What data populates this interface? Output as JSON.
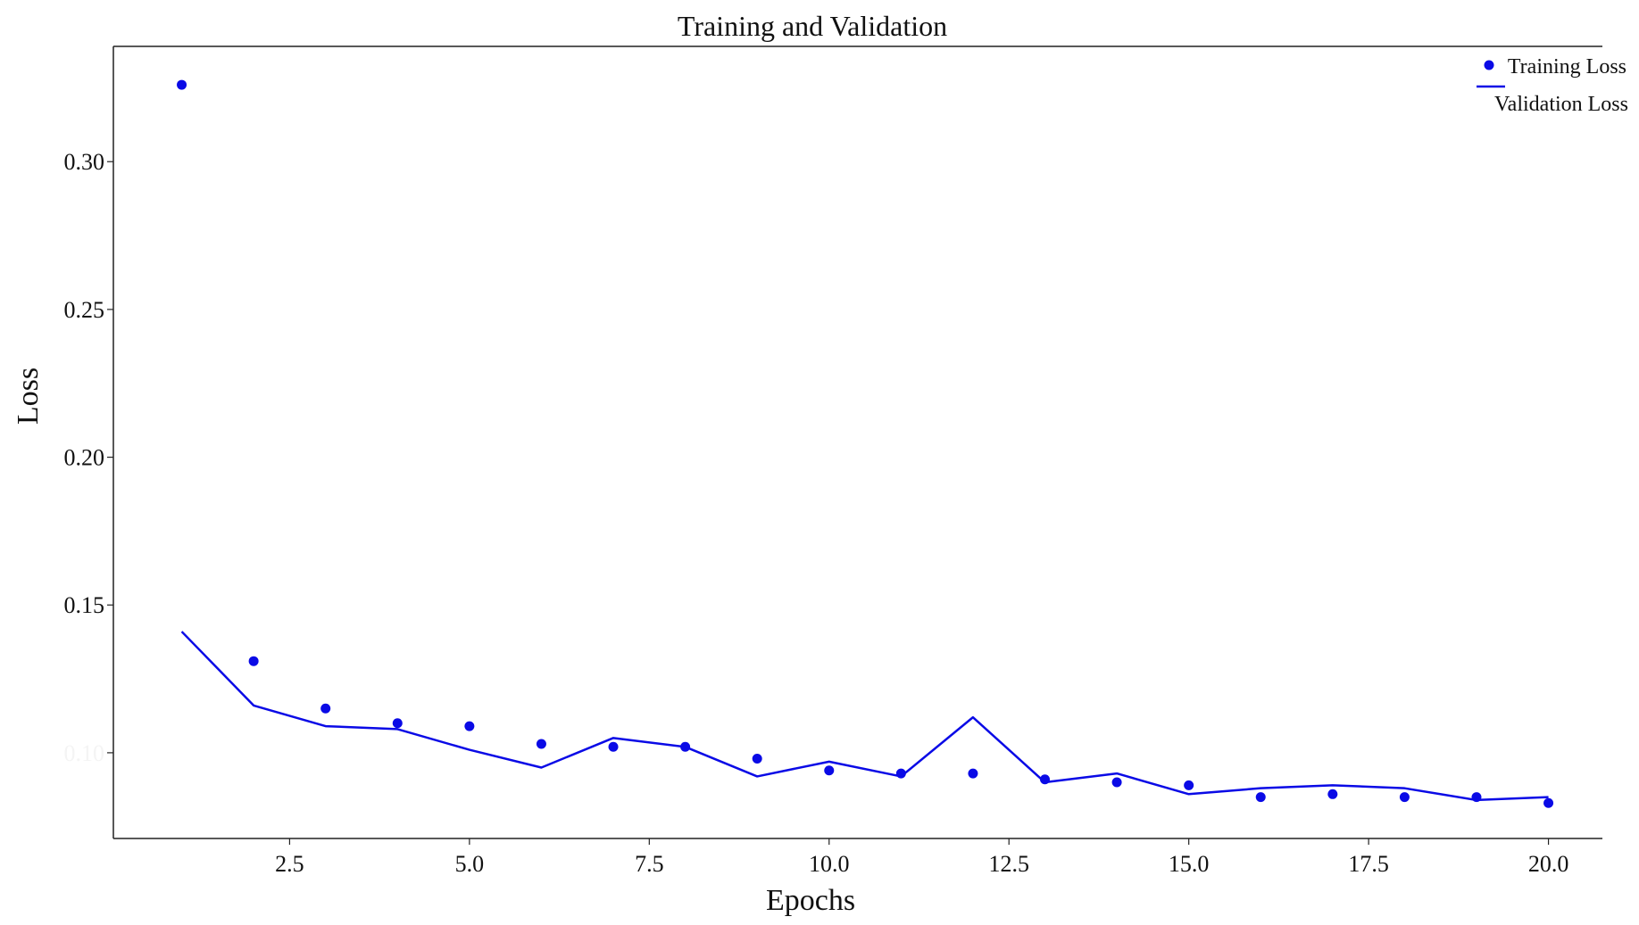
{
  "chart_data": {
    "type": "line",
    "title": "Training and Validation",
    "xlabel": "Epochs",
    "ylabel": "Loss",
    "xlim": [
      0.05,
      20.75
    ],
    "ylim": [
      0.071,
      0.339
    ],
    "x_ticks": [
      "2.5",
      "5.0",
      "7.5",
      "10.0",
      "12.5",
      "15.0",
      "17.5",
      "20.0"
    ],
    "y_ticks": [
      "0.10",
      "0.15",
      "0.20",
      "0.25",
      "0.30"
    ],
    "legend_position": "top-right",
    "grid": false,
    "colors": {
      "series": "#0a0ae6",
      "axis": "#222222"
    },
    "x": [
      1,
      2,
      3,
      4,
      5,
      6,
      7,
      8,
      9,
      10,
      11,
      12,
      13,
      14,
      15,
      16,
      17,
      18,
      19,
      20
    ],
    "series": [
      {
        "name": "Training Loss",
        "style": "markers",
        "values": [
          0.326,
          0.131,
          0.115,
          0.11,
          0.109,
          0.103,
          0.102,
          0.102,
          0.098,
          0.094,
          0.093,
          0.093,
          0.091,
          0.09,
          0.089,
          0.085,
          0.086,
          0.085,
          0.085,
          0.083
        ]
      },
      {
        "name": "Validation Loss",
        "style": "line",
        "values": [
          0.141,
          0.116,
          0.109,
          0.108,
          0.101,
          0.095,
          0.105,
          0.102,
          0.092,
          0.097,
          0.092,
          0.112,
          0.09,
          0.093,
          0.086,
          0.088,
          0.089,
          0.088,
          0.084,
          0.085
        ]
      }
    ]
  }
}
